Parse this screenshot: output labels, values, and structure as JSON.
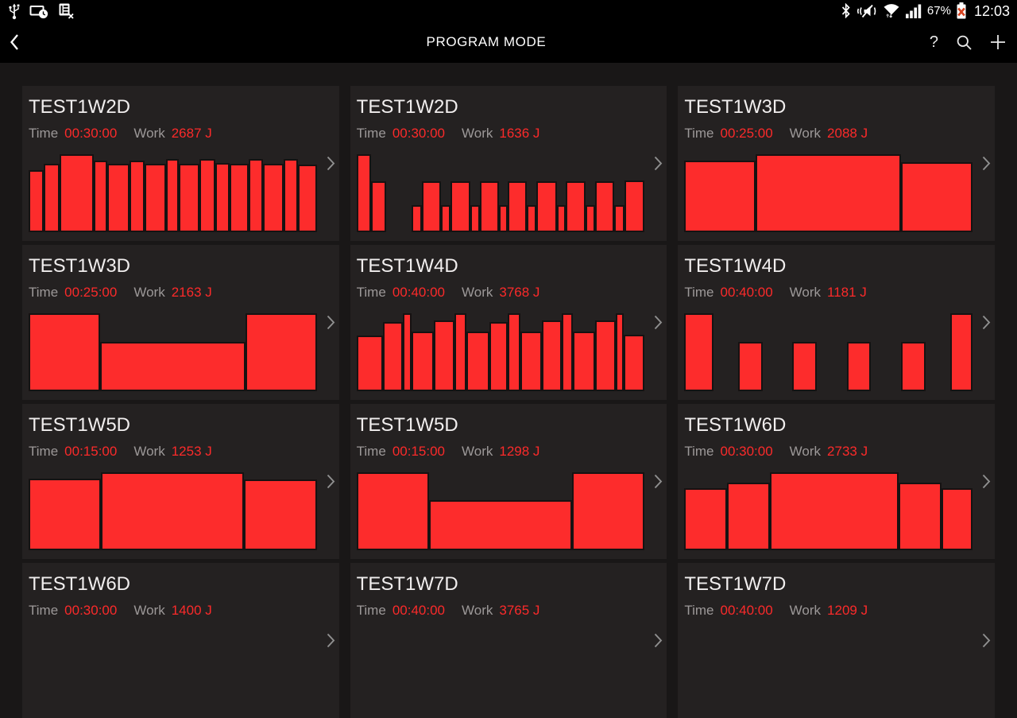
{
  "status_bar": {
    "left_icons": [
      "usb-icon",
      "screen-timeout-icon",
      "sim-removed-icon"
    ],
    "right_icons": [
      "bluetooth-icon",
      "vibrate-mute-icon",
      "wifi-icon",
      "signal-strength-icon"
    ],
    "battery_percent": "67%",
    "battery_icon": "battery-error-icon",
    "time": "12:03"
  },
  "action_bar": {
    "title": "PROGRAM MODE",
    "back_icon": "back-chevron-icon",
    "help_label": "?",
    "search_icon": "search-icon",
    "add_icon": "plus-icon"
  },
  "labels": {
    "time": "Time",
    "work": "Work"
  },
  "colors": {
    "bar_red": "#fd2c2c",
    "value_red": "#fb2a2a",
    "card_bg": "#242121",
    "page_bg": "#191717",
    "bar_border": "#161212"
  },
  "cards": [
    {
      "title": "TEST1W2D",
      "time": "00:30:00",
      "work": "2687 J",
      "chart": {
        "type": "bar",
        "bars": [
          [
            14,
            80
          ],
          [
            16,
            88
          ],
          [
            37,
            100
          ],
          [
            12,
            92
          ],
          [
            23,
            88
          ],
          [
            14,
            92
          ],
          [
            22,
            88
          ],
          [
            12,
            94
          ],
          [
            21,
            88
          ],
          [
            15,
            94
          ],
          [
            13,
            89
          ],
          [
            20,
            88
          ],
          [
            13,
            94
          ],
          [
            21,
            88
          ],
          [
            13,
            94
          ],
          [
            19,
            87
          ]
        ]
      }
    },
    {
      "title": "TEST1W2D",
      "time": "00:30:00",
      "work": "1636 J",
      "chart": {
        "type": "bar",
        "bars": [
          [
            18,
            100
          ],
          [
            18,
            65
          ],
          [
            40,
            0
          ],
          [
            11,
            35
          ],
          [
            25,
            65
          ],
          [
            10,
            35
          ],
          [
            26,
            65
          ],
          [
            10,
            35
          ],
          [
            25,
            65
          ],
          [
            9,
            35
          ],
          [
            25,
            65
          ],
          [
            10,
            35
          ],
          [
            27,
            65
          ],
          [
            9,
            35
          ],
          [
            25,
            65
          ],
          [
            10,
            35
          ],
          [
            25,
            65
          ],
          [
            11,
            35
          ],
          [
            27,
            66
          ]
        ]
      }
    },
    {
      "title": "TEST1W3D",
      "time": "00:25:00",
      "work": "2088 J",
      "chart": {
        "type": "bar",
        "bars": [
          [
            88,
            92
          ],
          [
            183,
            100
          ],
          [
            88,
            90
          ]
        ]
      }
    },
    {
      "title": "TEST1W3D",
      "time": "00:25:00",
      "work": "2163 J",
      "chart": {
        "type": "bar",
        "bars": [
          [
            88,
            100
          ],
          [
            183,
            63
          ],
          [
            88,
            100
          ]
        ]
      }
    },
    {
      "title": "TEST1W4D",
      "time": "00:40:00",
      "work": "3768 J",
      "chart": {
        "type": "bar",
        "bars": [
          [
            36,
            71
          ],
          [
            26,
            89
          ],
          [
            8,
            100
          ],
          [
            30,
            77
          ],
          [
            26,
            91
          ],
          [
            14,
            100
          ],
          [
            30,
            77
          ],
          [
            24,
            89
          ],
          [
            14,
            100
          ],
          [
            28,
            77
          ],
          [
            26,
            91
          ],
          [
            12,
            100
          ],
          [
            30,
            77
          ],
          [
            26,
            91
          ],
          [
            8,
            100
          ],
          [
            27,
            72
          ]
        ]
      }
    },
    {
      "title": "TEST1W4D",
      "time": "00:40:00",
      "work": "1181 J",
      "chart": {
        "type": "bar",
        "bars": [
          [
            35,
            100
          ],
          [
            33,
            0
          ],
          [
            29,
            63
          ],
          [
            40,
            0
          ],
          [
            29,
            63
          ],
          [
            40,
            0
          ],
          [
            28,
            63
          ],
          [
            41,
            0
          ],
          [
            29,
            63
          ],
          [
            33,
            0
          ],
          [
            26,
            100
          ]
        ]
      }
    },
    {
      "title": "TEST1W5D",
      "time": "00:15:00",
      "work": "1253 J",
      "chart": {
        "type": "bar",
        "bars": [
          [
            90,
            92
          ],
          [
            182,
            100
          ],
          [
            90,
            91
          ]
        ]
      }
    },
    {
      "title": "TEST1W5D",
      "time": "00:15:00",
      "work": "1298 J",
      "chart": {
        "type": "bar",
        "bars": [
          [
            96,
            100
          ],
          [
            195,
            64
          ],
          [
            96,
            100
          ]
        ]
      }
    },
    {
      "title": "TEST1W6D",
      "time": "00:30:00",
      "work": "2733 J",
      "chart": {
        "type": "bar",
        "bars": [
          [
            52,
            80
          ],
          [
            52,
            87
          ],
          [
            164,
            100
          ],
          [
            52,
            87
          ],
          [
            36,
            80
          ]
        ]
      }
    },
    {
      "title": "TEST1W6D",
      "time": "00:30:00",
      "work": "1400 J",
      "chart": {
        "type": "bar",
        "bars": []
      }
    },
    {
      "title": "TEST1W7D",
      "time": "00:40:00",
      "work": "3765 J",
      "chart": {
        "type": "bar",
        "bars": []
      }
    },
    {
      "title": "TEST1W7D",
      "time": "00:40:00",
      "work": "1209 J",
      "chart": {
        "type": "bar",
        "bars": []
      }
    }
  ]
}
